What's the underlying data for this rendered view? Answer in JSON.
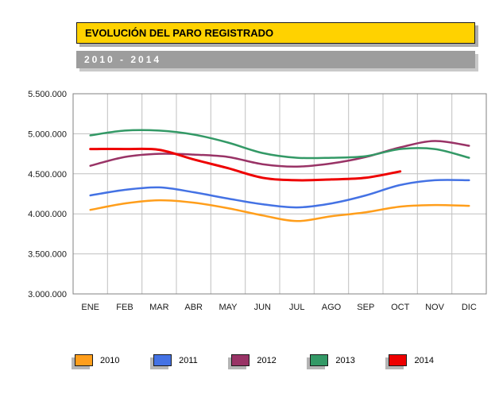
{
  "header": {
    "title": "EVOLUCIÓN DEL PARO REGISTRADO",
    "subtitle": "2010 - 2014"
  },
  "colors": {
    "title_bar_bg": "#FFD200",
    "subtitle_bar_bg": "#9D9D9D",
    "bar_shadow": "#ADADAD",
    "gridline": "#C0C0C0",
    "plot_border": "#808080",
    "axis_text": "#1A1A1A"
  },
  "chart_data": {
    "type": "line",
    "title": "EVOLUCIÓN DEL PARO REGISTRADO",
    "subtitle": "2010 - 2014",
    "categories": [
      "ENE",
      "FEB",
      "MAR",
      "ABR",
      "MAY",
      "JUN",
      "JUL",
      "AGO",
      "SEP",
      "OCT",
      "NOV",
      "DIC"
    ],
    "y_tick_labels": [
      "5.500.000",
      "5.000.000",
      "4.500.000",
      "4.000.000",
      "3.500.000",
      "3.000.000"
    ],
    "ylim": [
      3000000,
      5500000
    ],
    "grid": true,
    "legend_position": "bottom",
    "line_style": "smooth",
    "series": [
      {
        "name": "2010",
        "color": "#FF9E1B",
        "values": [
          4050000,
          4130000,
          4170000,
          4140000,
          4070000,
          3980000,
          3910000,
          3970000,
          4020000,
          4090000,
          4110000,
          4100000
        ]
      },
      {
        "name": "2011",
        "color": "#4472E4",
        "values": [
          4230000,
          4300000,
          4330000,
          4270000,
          4190000,
          4120000,
          4080000,
          4130000,
          4230000,
          4360000,
          4420000,
          4420000
        ]
      },
      {
        "name": "2012",
        "color": "#993366",
        "values": [
          4600000,
          4710000,
          4750000,
          4740000,
          4710000,
          4620000,
          4590000,
          4630000,
          4710000,
          4830000,
          4910000,
          4850000
        ]
      },
      {
        "name": "2013",
        "color": "#339966",
        "values": [
          4980000,
          5040000,
          5040000,
          4990000,
          4890000,
          4760000,
          4700000,
          4700000,
          4720000,
          4810000,
          4810000,
          4700000
        ]
      },
      {
        "name": "2014",
        "color": "#EE0000",
        "values": [
          4810000,
          4810000,
          4800000,
          4680000,
          4570000,
          4450000,
          4420000,
          4430000,
          4450000,
          4530000
        ]
      }
    ]
  }
}
